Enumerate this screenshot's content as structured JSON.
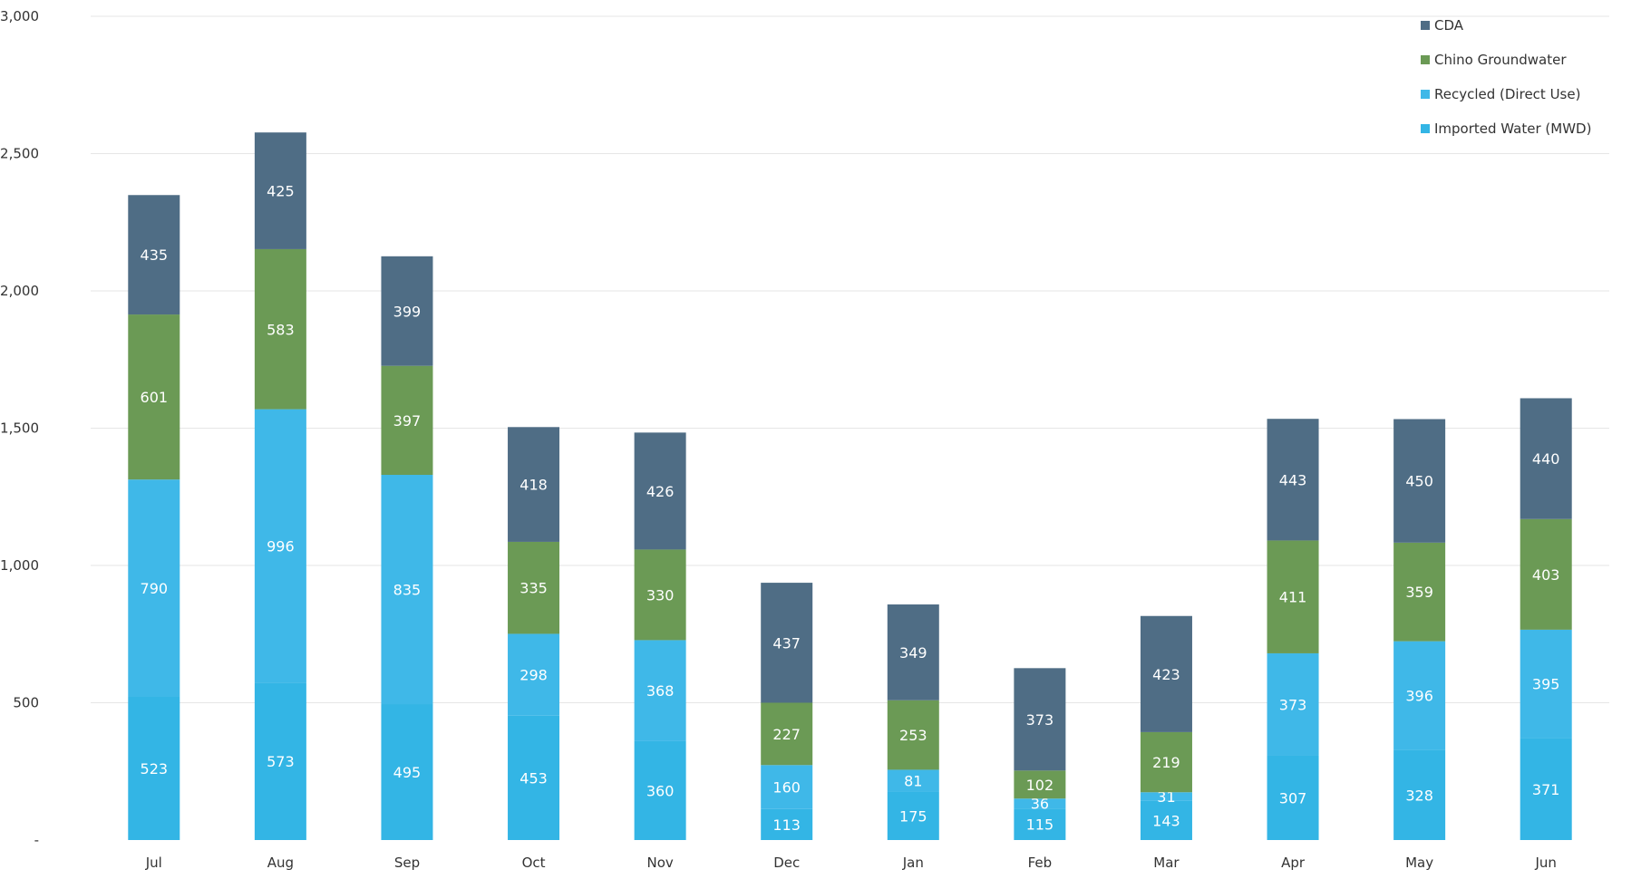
{
  "chart_data": {
    "type": "bar",
    "stacked": true,
    "categories": [
      "Jul",
      "Aug",
      "Sep",
      "Oct",
      "Nov",
      "Dec",
      "Jan",
      "Feb",
      "Mar",
      "Apr",
      "May",
      "Jun"
    ],
    "series": [
      {
        "name": "Imported Water (MWD)",
        "color": "#33b5e5",
        "values": [
          523,
          573,
          495,
          453,
          360,
          113,
          175,
          115,
          143,
          307,
          328,
          371
        ]
      },
      {
        "name": "Recycled (Direct Use)",
        "color": "#3fb8e8",
        "values": [
          790,
          996,
          835,
          298,
          368,
          160,
          81,
          36,
          31,
          373,
          396,
          395
        ]
      },
      {
        "name": "Chino Groundwater",
        "color": "#6b9a55",
        "values": [
          601,
          583,
          397,
          335,
          330,
          227,
          253,
          102,
          219,
          411,
          359,
          403
        ]
      },
      {
        "name": "CDA",
        "color": "#4f6d85",
        "values": [
          435,
          425,
          399,
          418,
          426,
          437,
          349,
          373,
          423,
          443,
          450,
          440
        ]
      }
    ],
    "legend_order": [
      "CDA",
      "Chino Groundwater",
      "Recycled (Direct Use)",
      "Imported Water (MWD)"
    ],
    "y_ticks": [
      "-",
      "500",
      "1,000",
      "1,500",
      "2,000",
      "2,500",
      "3,000"
    ],
    "ylim": [
      0,
      3000
    ],
    "grid": true,
    "legend_position": "top-right",
    "title": "",
    "xlabel": "",
    "ylabel": ""
  }
}
